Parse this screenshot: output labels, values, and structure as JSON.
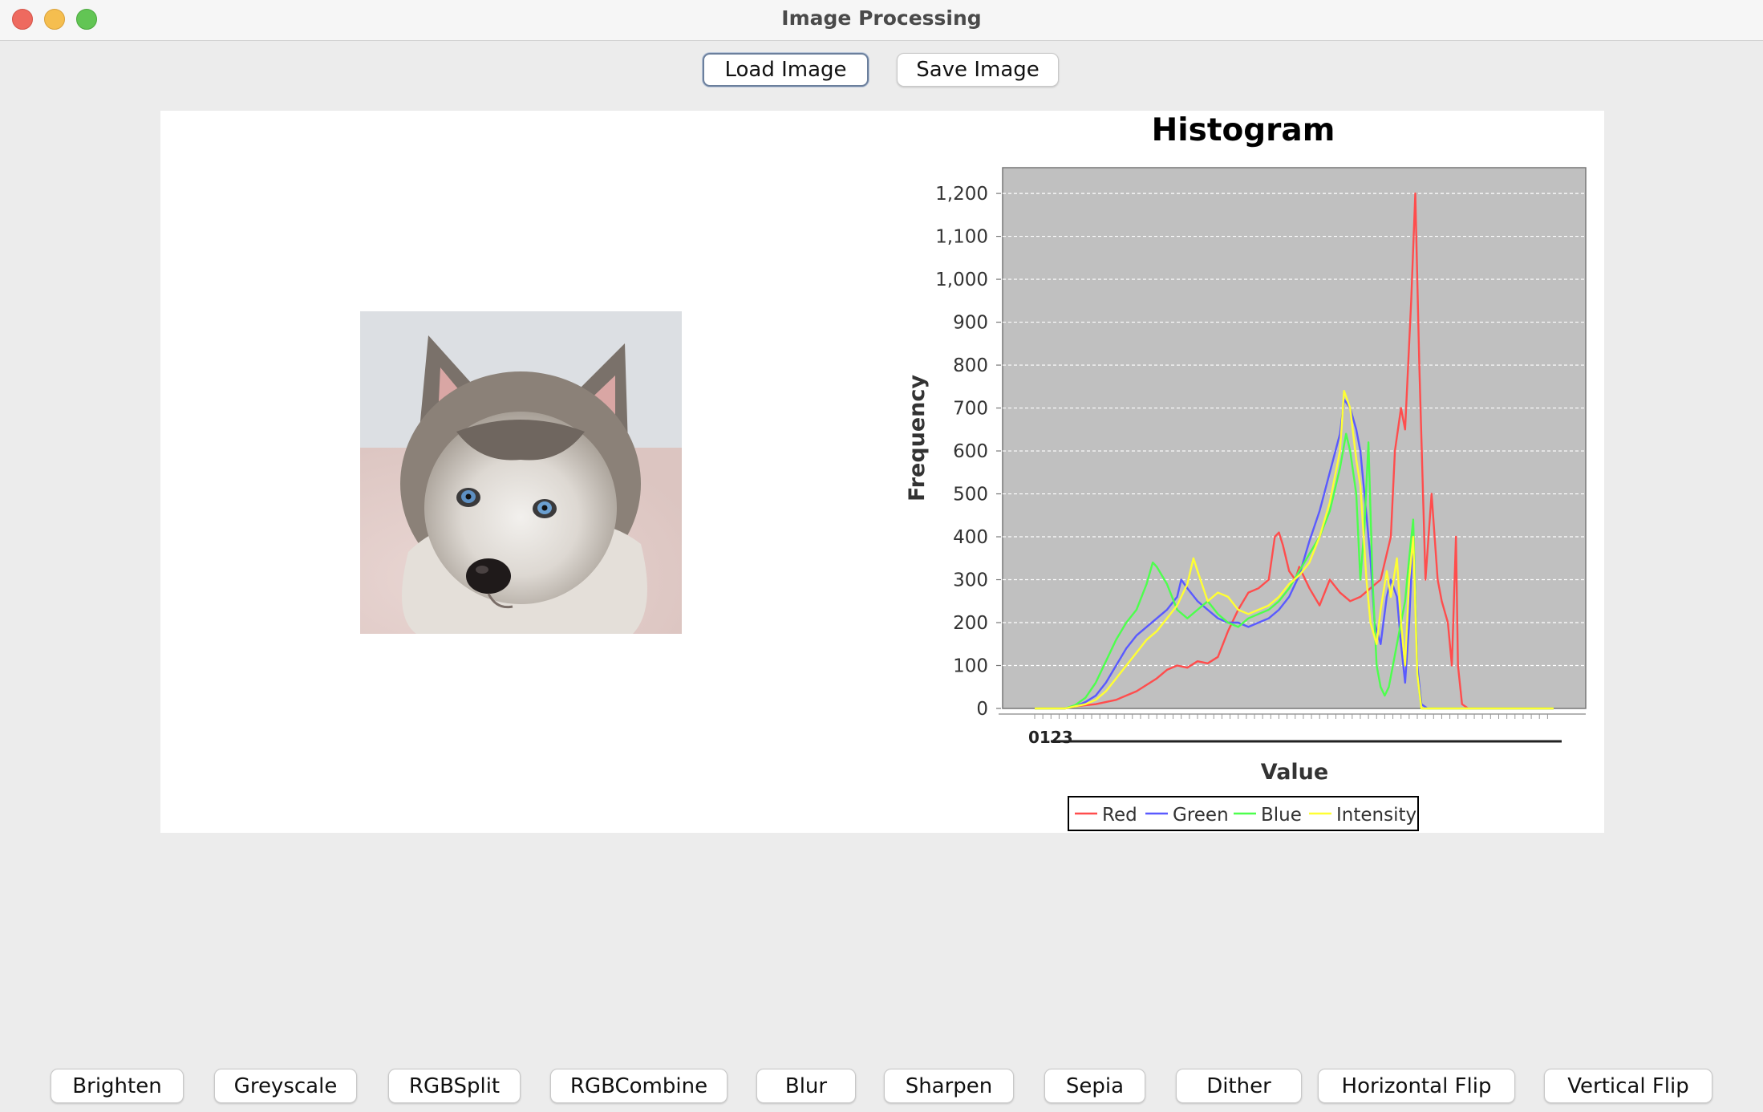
{
  "window": {
    "title": "Image Processing"
  },
  "toolbar": {
    "load_label": "Load Image",
    "save_label": "Save Image"
  },
  "operations": [
    "Brighten",
    "Greyscale",
    "RGBSplit",
    "RGBCombine",
    "Blur",
    "Sharpen",
    "Sepia",
    "Dither",
    "Horizontal Flip",
    "Vertical Flip"
  ],
  "colors": {
    "red": "#ff4d4d",
    "green": "#5a5aff",
    "blue": "#4dff4d",
    "intensity": "#ffff33",
    "plot_bg": "#c0c0c0",
    "window_bg": "#ececec"
  },
  "chart_data": {
    "type": "line",
    "title": "Histogram",
    "xlabel": "Value",
    "ylabel": "Frequency",
    "xlim": [
      0,
      255
    ],
    "ylim": [
      0,
      1260
    ],
    "yticks": [
      0,
      100,
      200,
      300,
      400,
      500,
      600,
      700,
      800,
      900,
      1000,
      1100,
      1200
    ],
    "ytick_labels": [
      "0",
      "100",
      "200",
      "300",
      "400",
      "500",
      "600",
      "700",
      "800",
      "900",
      "1,000",
      "1,100",
      "1,200"
    ],
    "xtick_label": "0123",
    "grid": true,
    "legend_position": "bottom",
    "series": [
      {
        "name": "Red",
        "color_key": "red",
        "points": [
          [
            0,
            0
          ],
          [
            15,
            0
          ],
          [
            20,
            5
          ],
          [
            30,
            10
          ],
          [
            40,
            20
          ],
          [
            50,
            40
          ],
          [
            60,
            70
          ],
          [
            65,
            90
          ],
          [
            70,
            100
          ],
          [
            75,
            95
          ],
          [
            80,
            110
          ],
          [
            85,
            105
          ],
          [
            90,
            120
          ],
          [
            95,
            180
          ],
          [
            100,
            230
          ],
          [
            105,
            270
          ],
          [
            110,
            280
          ],
          [
            115,
            300
          ],
          [
            118,
            400
          ],
          [
            120,
            410
          ],
          [
            122,
            380
          ],
          [
            125,
            320
          ],
          [
            128,
            300
          ],
          [
            130,
            330
          ],
          [
            135,
            280
          ],
          [
            140,
            240
          ],
          [
            145,
            300
          ],
          [
            150,
            270
          ],
          [
            155,
            250
          ],
          [
            160,
            260
          ],
          [
            165,
            280
          ],
          [
            170,
            300
          ],
          [
            175,
            400
          ],
          [
            177,
            600
          ],
          [
            180,
            700
          ],
          [
            182,
            650
          ],
          [
            185,
            950
          ],
          [
            187,
            1200
          ],
          [
            189,
            800
          ],
          [
            192,
            300
          ],
          [
            195,
            500
          ],
          [
            198,
            300
          ],
          [
            200,
            250
          ],
          [
            203,
            200
          ],
          [
            205,
            100
          ],
          [
            207,
            400
          ],
          [
            208,
            100
          ],
          [
            210,
            10
          ],
          [
            213,
            0
          ],
          [
            255,
            0
          ]
        ]
      },
      {
        "name": "Green",
        "color_key": "green",
        "points": [
          [
            0,
            0
          ],
          [
            15,
            0
          ],
          [
            20,
            5
          ],
          [
            25,
            15
          ],
          [
            30,
            30
          ],
          [
            35,
            60
          ],
          [
            40,
            100
          ],
          [
            45,
            140
          ],
          [
            50,
            170
          ],
          [
            55,
            190
          ],
          [
            60,
            210
          ],
          [
            65,
            230
          ],
          [
            70,
            260
          ],
          [
            72,
            300
          ],
          [
            75,
            280
          ],
          [
            80,
            250
          ],
          [
            85,
            230
          ],
          [
            90,
            210
          ],
          [
            95,
            200
          ],
          [
            100,
            200
          ],
          [
            105,
            190
          ],
          [
            110,
            200
          ],
          [
            115,
            210
          ],
          [
            120,
            230
          ],
          [
            125,
            260
          ],
          [
            130,
            310
          ],
          [
            135,
            390
          ],
          [
            140,
            460
          ],
          [
            145,
            550
          ],
          [
            150,
            640
          ],
          [
            152,
            720
          ],
          [
            155,
            700
          ],
          [
            158,
            650
          ],
          [
            160,
            600
          ],
          [
            163,
            450
          ],
          [
            165,
            350
          ],
          [
            167,
            200
          ],
          [
            170,
            150
          ],
          [
            173,
            260
          ],
          [
            175,
            300
          ],
          [
            178,
            260
          ],
          [
            180,
            150
          ],
          [
            182,
            60
          ],
          [
            184,
            200
          ],
          [
            186,
            420
          ],
          [
            188,
            100
          ],
          [
            190,
            10
          ],
          [
            193,
            0
          ],
          [
            255,
            0
          ]
        ]
      },
      {
        "name": "Blue",
        "color_key": "blue",
        "points": [
          [
            0,
            0
          ],
          [
            15,
            0
          ],
          [
            20,
            8
          ],
          [
            25,
            25
          ],
          [
            30,
            60
          ],
          [
            35,
            110
          ],
          [
            40,
            160
          ],
          [
            45,
            200
          ],
          [
            50,
            230
          ],
          [
            55,
            290
          ],
          [
            58,
            340
          ],
          [
            60,
            330
          ],
          [
            65,
            290
          ],
          [
            70,
            230
          ],
          [
            75,
            210
          ],
          [
            80,
            230
          ],
          [
            85,
            250
          ],
          [
            90,
            220
          ],
          [
            95,
            200
          ],
          [
            100,
            190
          ],
          [
            105,
            210
          ],
          [
            110,
            220
          ],
          [
            115,
            230
          ],
          [
            120,
            250
          ],
          [
            125,
            280
          ],
          [
            130,
            320
          ],
          [
            135,
            360
          ],
          [
            140,
            400
          ],
          [
            145,
            460
          ],
          [
            150,
            560
          ],
          [
            153,
            640
          ],
          [
            155,
            600
          ],
          [
            158,
            500
          ],
          [
            160,
            300
          ],
          [
            162,
            420
          ],
          [
            164,
            620
          ],
          [
            166,
            300
          ],
          [
            168,
            100
          ],
          [
            170,
            50
          ],
          [
            172,
            30
          ],
          [
            174,
            50
          ],
          [
            176,
            100
          ],
          [
            178,
            150
          ],
          [
            180,
            200
          ],
          [
            182,
            250
          ],
          [
            184,
            350
          ],
          [
            186,
            440
          ],
          [
            188,
            80
          ],
          [
            190,
            0
          ],
          [
            255,
            0
          ]
        ]
      },
      {
        "name": "Intensity",
        "color_key": "intensity",
        "points": [
          [
            0,
            0
          ],
          [
            15,
            0
          ],
          [
            20,
            5
          ],
          [
            25,
            10
          ],
          [
            30,
            20
          ],
          [
            35,
            40
          ],
          [
            40,
            70
          ],
          [
            45,
            100
          ],
          [
            50,
            130
          ],
          [
            55,
            160
          ],
          [
            60,
            180
          ],
          [
            65,
            210
          ],
          [
            70,
            240
          ],
          [
            75,
            290
          ],
          [
            78,
            350
          ],
          [
            80,
            320
          ],
          [
            85,
            250
          ],
          [
            90,
            270
          ],
          [
            95,
            260
          ],
          [
            100,
            230
          ],
          [
            105,
            220
          ],
          [
            110,
            230
          ],
          [
            115,
            240
          ],
          [
            120,
            260
          ],
          [
            125,
            290
          ],
          [
            130,
            310
          ],
          [
            135,
            340
          ],
          [
            140,
            400
          ],
          [
            145,
            480
          ],
          [
            150,
            600
          ],
          [
            152,
            740
          ],
          [
            155,
            700
          ],
          [
            158,
            580
          ],
          [
            160,
            520
          ],
          [
            163,
            300
          ],
          [
            165,
            200
          ],
          [
            168,
            150
          ],
          [
            170,
            230
          ],
          [
            173,
            320
          ],
          [
            175,
            260
          ],
          [
            178,
            350
          ],
          [
            180,
            200
          ],
          [
            182,
            100
          ],
          [
            184,
            300
          ],
          [
            186,
            400
          ],
          [
            188,
            80
          ],
          [
            190,
            0
          ],
          [
            255,
            0
          ]
        ]
      }
    ]
  }
}
